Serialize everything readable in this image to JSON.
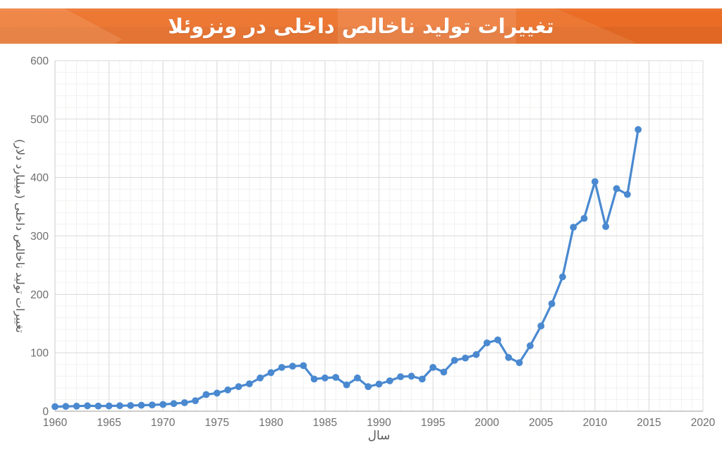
{
  "banner": {
    "title": "تغییرات تولید ناخالص داخلی در ونزوئلا",
    "background_color": "#ea6c25",
    "text_color": "#ffffff"
  },
  "chart_data": {
    "type": "line",
    "title": "تغییرات تولید ناخالص داخلی در ونزوئلا",
    "xlabel": "سال",
    "ylabel": "تغییرات تولید ناخالص داخلی (میلیارد دلار)",
    "xlim": [
      1960,
      2020
    ],
    "ylim": [
      0,
      600
    ],
    "x_ticks": [
      1960,
      1965,
      1970,
      1975,
      1980,
      1985,
      1990,
      1995,
      2000,
      2005,
      2010,
      2015,
      2020
    ],
    "y_ticks": [
      0,
      100,
      200,
      300,
      400,
      500,
      600
    ],
    "x_minor_step": 1,
    "y_minor_step": 20,
    "grid": true,
    "legend": "none",
    "line_color": "#4a89d0",
    "marker": "circle",
    "years": [
      1960,
      1961,
      1962,
      1963,
      1964,
      1965,
      1966,
      1967,
      1968,
      1969,
      1970,
      1971,
      1972,
      1973,
      1974,
      1975,
      1976,
      1977,
      1978,
      1979,
      1980,
      1981,
      1982,
      1983,
      1984,
      1985,
      1986,
      1987,
      1988,
      1989,
      1990,
      1991,
      1992,
      1993,
      1994,
      1995,
      1996,
      1997,
      1998,
      1999,
      2000,
      2001,
      2002,
      2003,
      2004,
      2005,
      2006,
      2007,
      2008,
      2009,
      2010,
      2011,
      2012,
      2013,
      2014
    ],
    "values": [
      7.8,
      8.2,
      8.7,
      9.3,
      8.8,
      9.1,
      9.4,
      9.8,
      10.3,
      10.8,
      11.6,
      13,
      14.6,
      18,
      28.5,
      31,
      36.5,
      42,
      47,
      57,
      66,
      75,
      77,
      78,
      55,
      57,
      58,
      45,
      57,
      42,
      46.5,
      52,
      59,
      60,
      55,
      75,
      67,
      87,
      91,
      97,
      117,
      122,
      92,
      83,
      112,
      146,
      184,
      230,
      315,
      330,
      393,
      316,
      381,
      371,
      482
    ]
  },
  "axis_style": {
    "tick_label_color": "#6e6e6e",
    "axis_title_color": "#5a5a5a",
    "major_grid_color": "#dadada",
    "minor_grid_color": "#f1f1f0",
    "axis_line_color": "#bdbdbd"
  }
}
